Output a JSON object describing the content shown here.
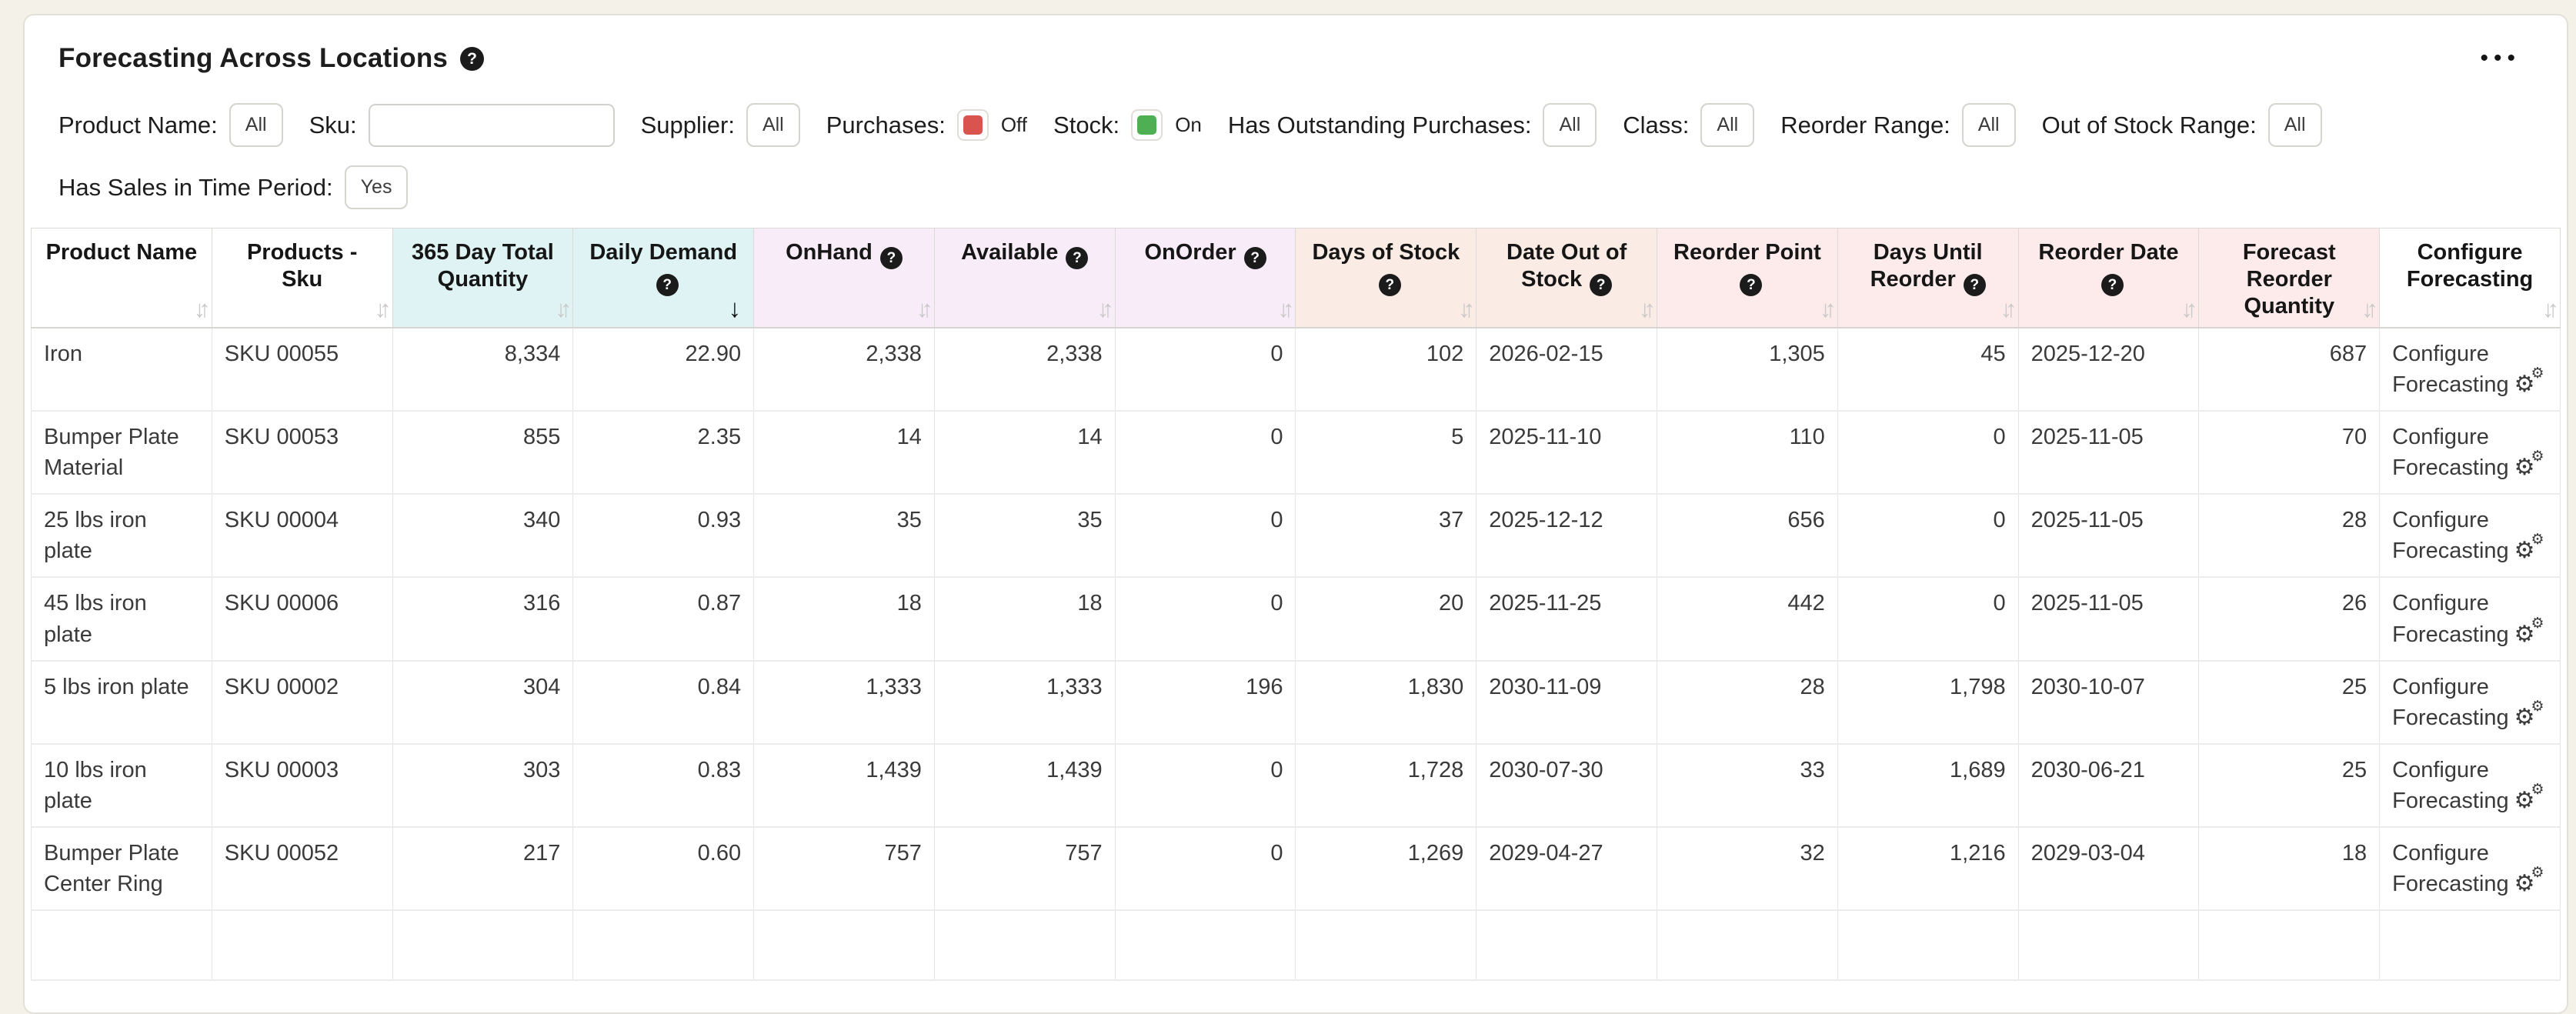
{
  "colors": {
    "page_bg": "#f4f1e9",
    "card_bg": "#ffffff",
    "plain": "#ffffff",
    "cyan": "#e0f3f4",
    "pink": "#f8ecf8",
    "peach": "#faebe4",
    "rose": "#fcebea",
    "toggle_off": "#d9534f",
    "toggle_on": "#4fb053"
  },
  "icons": {
    "help": "?",
    "menu": "•••",
    "sort_both": "↓↑",
    "sort_desc": "↓",
    "gear": "⚙"
  },
  "header": {
    "title": "Forecasting Across Locations"
  },
  "filters": {
    "row1": [
      {
        "label": "Product Name:",
        "control": "button",
        "value": "All"
      },
      {
        "label": "Sku:",
        "control": "input",
        "value": ""
      },
      {
        "label": "Supplier:",
        "control": "button",
        "value": "All"
      },
      {
        "label": "Purchases:",
        "control": "toggle",
        "state": "Off",
        "color": "#d9534f"
      },
      {
        "label": "Stock:",
        "control": "toggle",
        "state": "On",
        "color": "#4fb053"
      },
      {
        "label": "Has Outstanding Purchases:",
        "control": "button",
        "value": "All"
      },
      {
        "label": "Class:",
        "control": "button",
        "value": "All"
      },
      {
        "label": "Reorder Range:",
        "control": "button",
        "value": "All"
      },
      {
        "label": "Out of Stock Range:",
        "control": "button",
        "value": "All"
      }
    ],
    "row2": [
      {
        "label": "Has Sales in Time Period:",
        "control": "button",
        "value": "Yes"
      }
    ]
  },
  "table": {
    "action_label": "Configure Forecasting",
    "columns": [
      {
        "label": "Product Name",
        "group": "plain",
        "align": "left",
        "help": false,
        "sort": "both"
      },
      {
        "label": "Products - Sku",
        "group": "plain",
        "align": "left",
        "help": false,
        "sort": "both"
      },
      {
        "label": "365 Day Total Quantity",
        "group": "cyan",
        "align": "right",
        "help": false,
        "sort": "both"
      },
      {
        "label": "Daily Demand",
        "group": "cyan",
        "align": "right",
        "help": true,
        "sort": "desc"
      },
      {
        "label": "OnHand",
        "group": "pink",
        "align": "right",
        "help": true,
        "sort": "both"
      },
      {
        "label": "Available",
        "group": "pink",
        "align": "right",
        "help": true,
        "sort": "both"
      },
      {
        "label": "OnOrder",
        "group": "pink",
        "align": "right",
        "help": true,
        "sort": "both"
      },
      {
        "label": "Days of Stock",
        "group": "peach",
        "align": "right",
        "help": true,
        "sort": "both"
      },
      {
        "label": "Date Out of Stock",
        "group": "peach",
        "align": "left",
        "help": true,
        "sort": "both"
      },
      {
        "label": "Reorder Point",
        "group": "rose",
        "align": "right",
        "help": true,
        "sort": "both"
      },
      {
        "label": "Days Until Reorder",
        "group": "rose",
        "align": "right",
        "help": true,
        "sort": "both"
      },
      {
        "label": "Reorder Date",
        "group": "rose",
        "align": "left",
        "help": true,
        "sort": "both"
      },
      {
        "label": "Forecast Reorder Quantity",
        "group": "rose",
        "align": "right",
        "help": false,
        "sort": "both"
      },
      {
        "label": "Configure Forecasting",
        "group": "plain",
        "align": "left",
        "help": false,
        "sort": "both"
      }
    ],
    "rows": [
      [
        "Iron",
        "SKU 00055",
        "8,334",
        "22.90",
        "2,338",
        "2,338",
        "0",
        "102",
        "2026-02-15",
        "1,305",
        "45",
        "2025-12-20",
        "687"
      ],
      [
        "Bumper Plate Material",
        "SKU 00053",
        "855",
        "2.35",
        "14",
        "14",
        "0",
        "5",
        "2025-11-10",
        "110",
        "0",
        "2025-11-05",
        "70"
      ],
      [
        "25 lbs iron plate",
        "SKU 00004",
        "340",
        "0.93",
        "35",
        "35",
        "0",
        "37",
        "2025-12-12",
        "656",
        "0",
        "2025-11-05",
        "28"
      ],
      [
        "45 lbs iron plate",
        "SKU 00006",
        "316",
        "0.87",
        "18",
        "18",
        "0",
        "20",
        "2025-11-25",
        "442",
        "0",
        "2025-11-05",
        "26"
      ],
      [
        "5 lbs iron plate",
        "SKU 00002",
        "304",
        "0.84",
        "1,333",
        "1,333",
        "196",
        "1,830",
        "2030-11-09",
        "28",
        "1,798",
        "2030-10-07",
        "25"
      ],
      [
        "10 lbs iron plate",
        "SKU 00003",
        "303",
        "0.83",
        "1,439",
        "1,439",
        "0",
        "1,728",
        "2030-07-30",
        "33",
        "1,689",
        "2030-06-21",
        "25"
      ],
      [
        "Bumper Plate Center Ring",
        "SKU 00052",
        "217",
        "0.60",
        "757",
        "757",
        "0",
        "1,269",
        "2029-04-27",
        "32",
        "1,216",
        "2029-03-04",
        "18"
      ]
    ]
  }
}
